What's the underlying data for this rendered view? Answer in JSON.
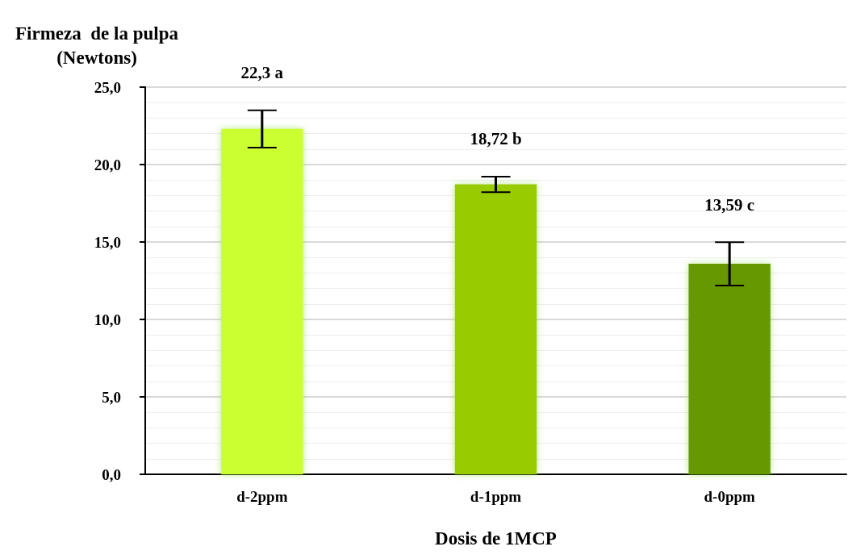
{
  "chart_data": {
    "type": "bar",
    "ylabel": "Firmeza  de la pulpa\n(Newtons)",
    "xlabel": "Dosis de 1MCP",
    "categories": [
      "d-2ppm",
      "d-1ppm",
      "d-0ppm"
    ],
    "values": [
      22.3,
      18.72,
      13.59
    ],
    "colors": [
      "#ccff33",
      "#99cc00",
      "#669900"
    ],
    "errors": [
      1.2,
      0.5,
      1.4
    ],
    "value_labels": [
      "22,3 a",
      "18,72 b",
      "13,59 c"
    ],
    "ylim": [
      0,
      25
    ],
    "yticks": [
      {
        "value": 0,
        "label": "0,0"
      },
      {
        "value": 5,
        "label": "5,0"
      },
      {
        "value": 10,
        "label": "10,0"
      },
      {
        "value": 15,
        "label": "15,0"
      },
      {
        "value": 20,
        "label": "20,0"
      },
      {
        "value": 25,
        "label": "25,0"
      }
    ],
    "grid": "y"
  }
}
